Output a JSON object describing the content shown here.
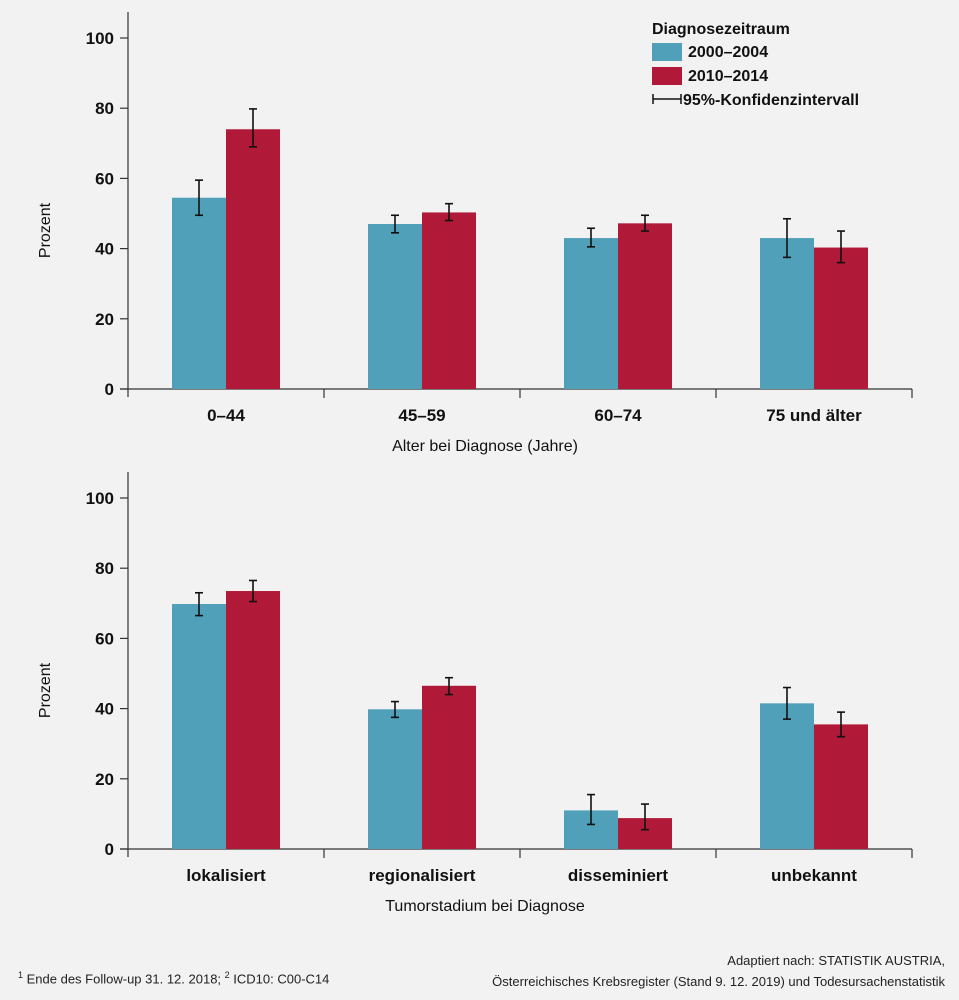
{
  "legend": {
    "title": "Diagnosezeitraum",
    "ci_label": "95%-Konfidenzintervall"
  },
  "colors": {
    "series_1": "#4fa0b8",
    "series_2": "#b01a38",
    "axis": "#333333",
    "background": "#f2f2f2"
  },
  "chart_data": [
    {
      "type": "bar",
      "categories": [
        "0–44",
        "45–59",
        "60–74",
        "75 und älter"
      ],
      "series": [
        {
          "name": "2000–2004",
          "values": [
            54.5,
            47.0,
            43.0,
            43.0
          ],
          "ci_low": [
            49.5,
            44.5,
            40.5,
            37.5
          ],
          "ci_high": [
            59.5,
            49.5,
            45.8,
            48.5
          ]
        },
        {
          "name": "2010–2014",
          "values": [
            74.0,
            50.3,
            47.2,
            40.3
          ],
          "ci_low": [
            69.0,
            48.0,
            45.0,
            36.0
          ],
          "ci_high": [
            79.8,
            52.8,
            49.5,
            45.0
          ]
        }
      ],
      "xlabel": "Alter bei Diagnose (Jahre)",
      "ylabel": "Prozent",
      "ylim": [
        0,
        100
      ],
      "yticks": [
        "0",
        "20",
        "40",
        "60",
        "80",
        "100"
      ],
      "legend_position": "top-right"
    },
    {
      "type": "bar",
      "categories": [
        "lokalisiert",
        "regionalisiert",
        "disseminiert",
        "unbekannt"
      ],
      "series": [
        {
          "name": "2000–2004",
          "values": [
            69.8,
            39.8,
            11.0,
            41.5
          ],
          "ci_low": [
            66.5,
            37.5,
            7.0,
            37.0
          ],
          "ci_high": [
            73.0,
            42.0,
            15.5,
            46.0
          ]
        },
        {
          "name": "2010–2014",
          "values": [
            73.5,
            46.5,
            8.8,
            35.5
          ],
          "ci_low": [
            70.5,
            44.0,
            5.5,
            32.0
          ],
          "ci_high": [
            76.5,
            48.8,
            12.8,
            39.0
          ]
        }
      ],
      "xlabel": "Tumorstadium bei Diagnose",
      "ylabel": "Prozent",
      "ylim": [
        0,
        100
      ],
      "yticks": [
        "0",
        "20",
        "40",
        "60",
        "80",
        "100"
      ]
    }
  ],
  "footnote": {
    "sup1": "1",
    "text1": " Ende des Follow-up 31. 12. 2018; ",
    "sup2": "2",
    "text2": " ICD10: C00-C14"
  },
  "source": {
    "line1": "Adaptiert nach: STATISTIK AUSTRIA,",
    "line2": "Österreichisches Krebsregister (Stand 9. 12. 2019) und Todesursachenstatistik"
  }
}
